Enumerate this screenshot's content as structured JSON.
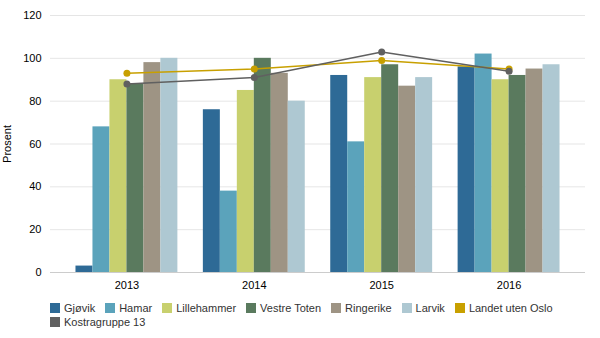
{
  "chart_data": {
    "type": "bar",
    "ylabel": "Prosent",
    "categories": [
      "2013",
      "2014",
      "2015",
      "2016"
    ],
    "series": [
      {
        "name": "Gjøvik",
        "color": "#2e6a96",
        "values": [
          3,
          76,
          92,
          96
        ]
      },
      {
        "name": "Hamar",
        "color": "#5ba3bb",
        "values": [
          68,
          38,
          61,
          102
        ]
      },
      {
        "name": "Lillehammer",
        "color": "#c8d06e",
        "values": [
          90,
          85,
          91,
          90
        ]
      },
      {
        "name": "Vestre Toten",
        "color": "#5a7a5e",
        "values": [
          88,
          100,
          97,
          92
        ]
      },
      {
        "name": "Ringerike",
        "color": "#9e9484",
        "values": [
          98,
          93,
          87,
          95
        ]
      },
      {
        "name": "Larvik",
        "color": "#aec8d2",
        "values": [
          100,
          80,
          91,
          97
        ]
      },
      {
        "name": "Landet uten Oslo",
        "color": "#c8a000",
        "type": "line",
        "marker": "circle",
        "values": [
          93,
          95,
          99,
          95
        ]
      },
      {
        "name": "Kostragruppe 13",
        "color": "#606060",
        "type": "line",
        "marker": "circle",
        "values": [
          88,
          91,
          103,
          94
        ]
      }
    ],
    "ylim": [
      0,
      120
    ],
    "yticks": [
      0,
      20,
      40,
      60,
      80,
      100,
      120
    ],
    "grid": true,
    "legend": "bottom"
  }
}
